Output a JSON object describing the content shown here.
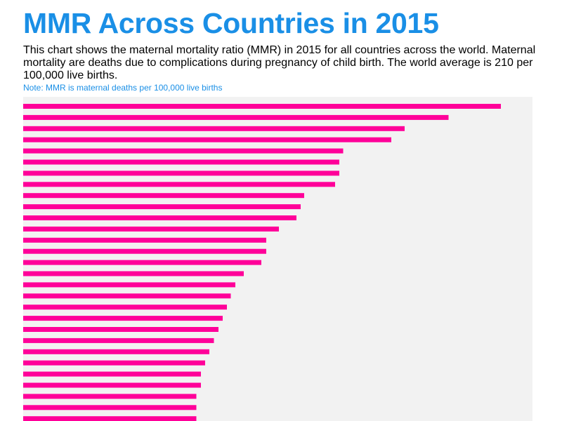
{
  "title": "MMR Across Countries in 2015",
  "subtitle": "This chart shows the maternal mortality ratio (MMR) in 2015 for all countries across the world. Maternal mortality are deaths due to complications during pregnancy of child birth. The world average is 210 per 100,000 live births.",
  "note": "Note: MMR is maternal deaths per 100,000 live births",
  "colors": {
    "title": "#1a8fe6",
    "note": "#1a8fe6",
    "bar": "#ff0099",
    "plot_background": "#f2f2f2"
  },
  "chart_data": {
    "type": "bar",
    "orientation": "horizontal",
    "xlim": [
      0,
      1450
    ],
    "grid": false,
    "legend": "none",
    "values": [
      1360,
      1211,
      1086,
      1048,
      911,
      900,
      900,
      888,
      800,
      790,
      778,
      728,
      692,
      692,
      678,
      628,
      604,
      591,
      580,
      568,
      556,
      543,
      530,
      518,
      506,
      506,
      493,
      493,
      493
    ]
  }
}
